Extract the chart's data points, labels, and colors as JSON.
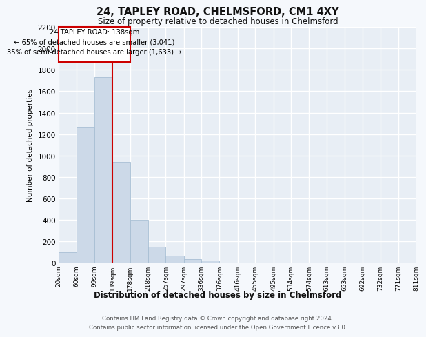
{
  "title": "24, TAPLEY ROAD, CHELMSFORD, CM1 4XY",
  "subtitle": "Size of property relative to detached houses in Chelmsford",
  "xlabel": "Distribution of detached houses by size in Chelmsford",
  "ylabel": "Number of detached properties",
  "footer_line1": "Contains HM Land Registry data © Crown copyright and database right 2024.",
  "footer_line2": "Contains public sector information licensed under the Open Government Licence v3.0.",
  "annotation_line1": "24 TAPLEY ROAD: 138sqm",
  "annotation_line2": "← 65% of detached houses are smaller (3,041)",
  "annotation_line3": "35% of semi-detached houses are larger (1,633) →",
  "bin_edges": [
    20,
    60,
    99,
    139,
    178,
    218,
    257,
    297,
    336,
    376,
    416,
    455,
    495,
    534,
    574,
    613,
    653,
    692,
    732,
    771,
    811
  ],
  "bar_heights": [
    100,
    1260,
    1730,
    940,
    400,
    150,
    65,
    35,
    20,
    0,
    0,
    0,
    0,
    0,
    0,
    0,
    0,
    0,
    0,
    0
  ],
  "bar_color": "#ccd9e8",
  "bar_edgecolor": "#a8bfd4",
  "vline_color": "#cc0000",
  "vline_x": 139,
  "annotation_box_edgecolor": "#cc0000",
  "annotation_box_facecolor": "#ffffff",
  "fig_bg_color": "#f5f8fc",
  "plot_bg_color": "#e8eef5",
  "grid_color": "#ffffff",
  "ylim": [
    0,
    2200
  ],
  "yticks": [
    0,
    200,
    400,
    600,
    800,
    1000,
    1200,
    1400,
    1600,
    1800,
    2000,
    2200
  ]
}
